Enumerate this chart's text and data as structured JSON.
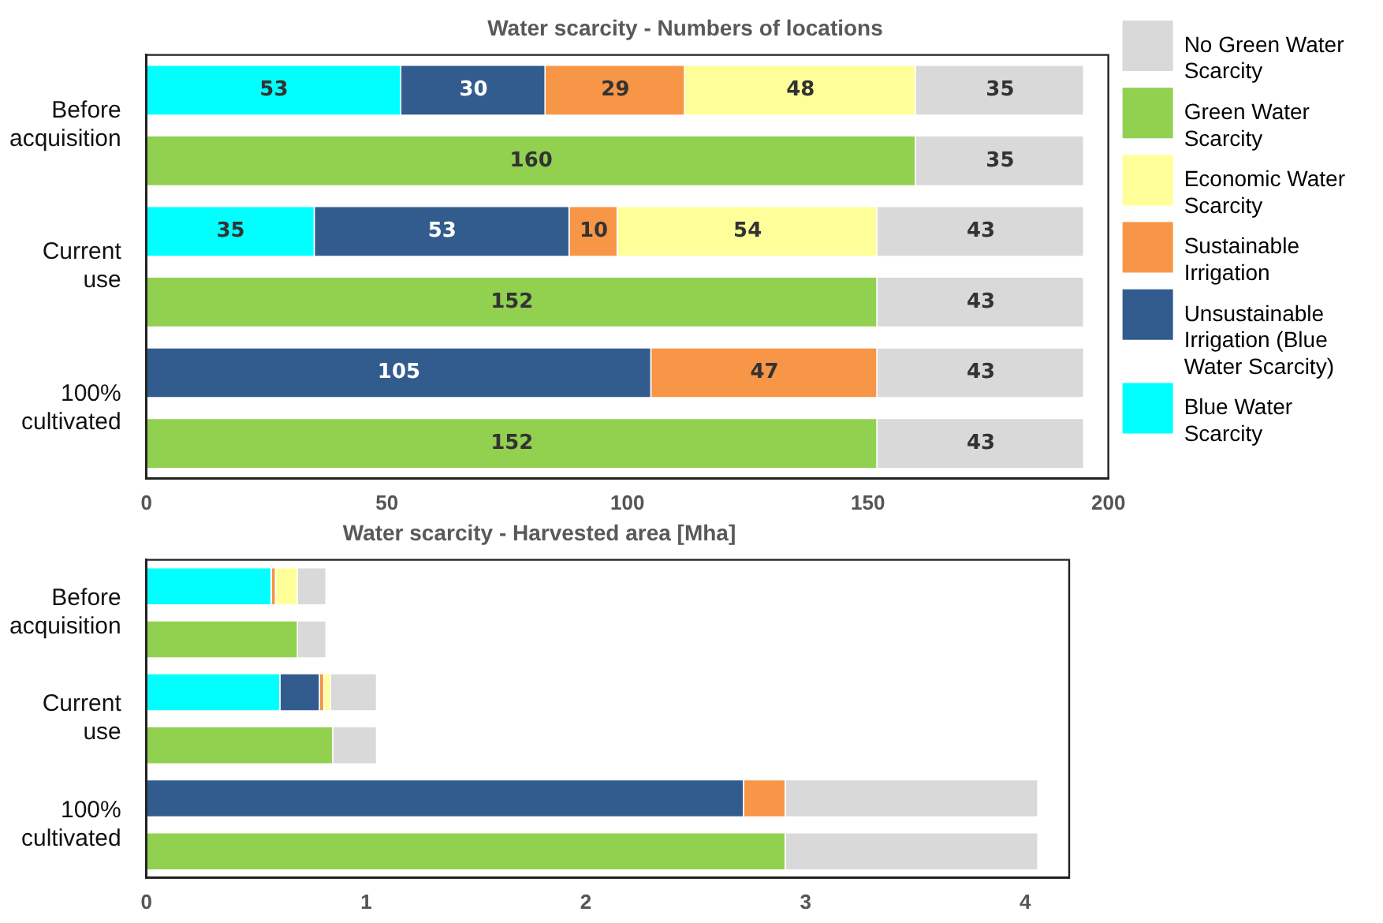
{
  "chart_data": [
    {
      "type": "bar",
      "orientation": "horizontal",
      "stacked": true,
      "title": "Water scarcity - Numbers of locations",
      "categories": [
        "Before acquisition",
        null,
        "Current use",
        null,
        "100% cultivated",
        null
      ],
      "series": [
        {
          "name": "Blue Water Scarcity",
          "color": "#00ffff",
          "values": [
            53,
            null,
            35,
            null,
            null,
            null
          ]
        },
        {
          "name": "Unsustainable Irrigation (Blue Water Scarcity)",
          "color": "#335c8e",
          "values": [
            30,
            null,
            53,
            null,
            105,
            null
          ]
        },
        {
          "name": "Sustainable Irrigation",
          "color": "#f79646",
          "values": [
            29,
            null,
            10,
            null,
            47,
            null
          ]
        },
        {
          "name": "Economic Water Scarcity",
          "color": "#ffff99",
          "values": [
            48,
            null,
            54,
            null,
            null,
            null
          ]
        },
        {
          "name": "Green Water Scarcity",
          "color": "#92d050",
          "values": [
            null,
            160,
            null,
            152,
            null,
            152
          ]
        },
        {
          "name": "No Green Water Scarcity",
          "color": "#d9d9d9",
          "values": [
            35,
            35,
            43,
            43,
            43,
            43
          ]
        }
      ],
      "xlim": [
        0,
        200
      ],
      "xticks": [
        0,
        50,
        100,
        150,
        200
      ],
      "data_labels": true,
      "legend": "right",
      "grid": false
    },
    {
      "type": "bar",
      "orientation": "horizontal",
      "stacked": true,
      "title": "Water scarcity - Harvested area [Mha]",
      "categories": [
        "Before acquisition",
        null,
        "Current use",
        null,
        "100% cultivated",
        null
      ],
      "series": [
        {
          "color": "#00ffff",
          "values": [
            0.57,
            null,
            0.61,
            null,
            null,
            null
          ]
        },
        {
          "color": "#335c8e",
          "values": [
            null,
            null,
            0.18,
            null,
            2.72,
            null
          ]
        },
        {
          "color": "#f79646",
          "values": [
            0.02,
            null,
            0.02,
            null,
            0.19,
            null
          ]
        },
        {
          "color": "#ffff99",
          "values": [
            0.1,
            null,
            0.03,
            null,
            null,
            null
          ]
        },
        {
          "color": "#92d050",
          "values": [
            null,
            0.69,
            null,
            0.85,
            null,
            2.91
          ]
        },
        {
          "color": "#d9d9d9",
          "values": [
            0.13,
            0.13,
            0.21,
            0.2,
            1.15,
            1.15
          ]
        }
      ],
      "xlim": [
        0,
        4.2
      ],
      "xticks": [
        0,
        1,
        2,
        3,
        4
      ],
      "grid": false
    }
  ]
}
